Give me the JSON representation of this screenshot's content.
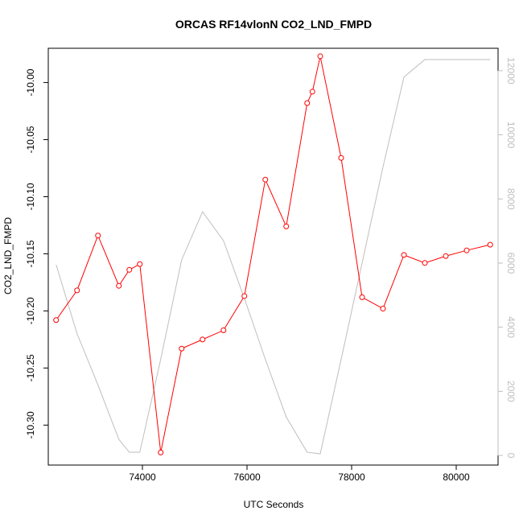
{
  "chart_data": {
    "type": "line",
    "title": "ORCAS RF14vlonN CO2_LND_FMPD",
    "xlabel": "UTC Seconds",
    "ylabel": "CO2_LND_FMPD",
    "xlim": [
      72200,
      80800
    ],
    "ylim": [
      -10.335,
      -9.97
    ],
    "y2lim": [
      -300,
      12700
    ],
    "y_reversed": true,
    "grid": false,
    "legend": "none",
    "xticks": [
      {
        "value": 74000,
        "label": "74000"
      },
      {
        "value": 76000,
        "label": "76000"
      },
      {
        "value": 78000,
        "label": "78000"
      },
      {
        "value": 80000,
        "label": "80000"
      }
    ],
    "yticks": [
      {
        "value": -10.0,
        "label": "-10.00"
      },
      {
        "value": -10.05,
        "label": "-10.05"
      },
      {
        "value": -10.1,
        "label": "-10.10"
      },
      {
        "value": -10.15,
        "label": "-10.15"
      },
      {
        "value": -10.2,
        "label": "-10.20"
      },
      {
        "value": -10.25,
        "label": "-10.25"
      },
      {
        "value": -10.3,
        "label": "-10.30"
      }
    ],
    "y2ticks": [
      {
        "value": 0,
        "label": "0"
      },
      {
        "value": 2000,
        "label": "2000"
      },
      {
        "value": 4000,
        "label": "4000"
      },
      {
        "value": 6000,
        "label": "6000"
      },
      {
        "value": 8000,
        "label": "8000"
      },
      {
        "value": 10000,
        "label": "10000"
      },
      {
        "value": 12000,
        "label": "12000"
      }
    ],
    "series": [
      {
        "axis": "left",
        "color": "#ff0000",
        "marker": "open-circle",
        "x": [
          72350,
          72750,
          73150,
          73550,
          73750,
          73950,
          74350,
          74750,
          75150,
          75550,
          75950,
          76350,
          76750,
          77150,
          77250,
          77400,
          77800,
          78200,
          78600,
          79000,
          79400,
          79800,
          80200,
          80650
        ],
        "y": [
          -10.208,
          -10.182,
          -10.134,
          -10.178,
          -10.164,
          -10.159,
          -10.324,
          -10.233,
          -10.225,
          -10.217,
          -10.187,
          -10.085,
          -10.126,
          -10.018,
          -10.008,
          -9.977,
          -10.066,
          -10.188,
          -10.198,
          -10.151,
          -10.158,
          -10.152,
          -10.147,
          -10.142
        ]
      },
      {
        "axis": "right",
        "color": "#bebebe",
        "marker": "none",
        "x": [
          72350,
          72750,
          73150,
          73550,
          73750,
          73950,
          74350,
          74750,
          75150,
          75550,
          75950,
          76350,
          76750,
          77150,
          77400,
          77800,
          78200,
          78600,
          79000,
          79400,
          79800,
          80200,
          80650
        ],
        "y": [
          5950,
          3800,
          2200,
          500,
          100,
          100,
          3000,
          6100,
          7600,
          6700,
          4900,
          3000,
          1200,
          100,
          50,
          3000,
          6000,
          9000,
          11800,
          12350,
          12350,
          12350,
          12350
        ]
      }
    ]
  }
}
